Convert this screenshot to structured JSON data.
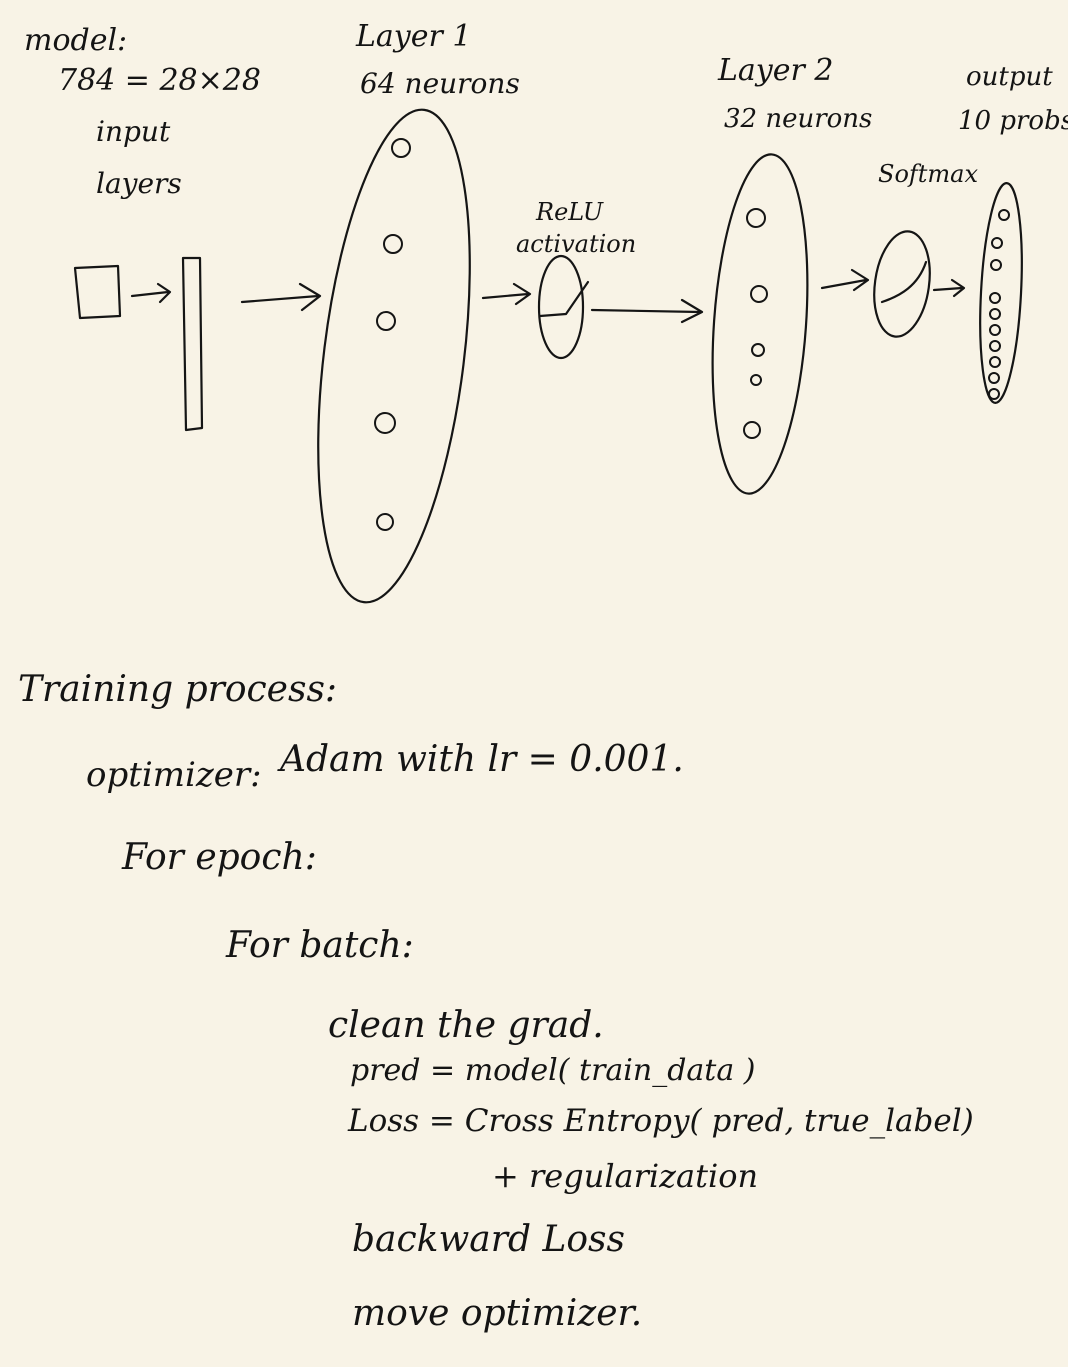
{
  "model": {
    "heading": "model:",
    "input_dim": "784 = 28×28",
    "input_label_1": "input",
    "input_label_2": "layers"
  },
  "layer1": {
    "title": "Layer 1",
    "neurons": "64 neurons"
  },
  "activation": {
    "label_1": "ReLU",
    "label_2": "activation"
  },
  "layer2": {
    "title": "Layer 2",
    "neurons": "32 neurons"
  },
  "softmax": {
    "label": "Softmax"
  },
  "output": {
    "title": "output",
    "probs": "10 probs"
  },
  "training": {
    "heading": "Training process:",
    "optimizer_label": "optimizer:",
    "optimizer_value": "Adam with lr = 0.001.",
    "for_epoch": "For epoch:",
    "for_batch": "For batch:",
    "step_clear": "clean the grad.",
    "step_pred": "pred = model( train_data )",
    "step_loss_1": "Loss  =   Cross  Entropy( pred,  true_label)",
    "step_loss_2": "+ regularization",
    "step_backward": "backward  Loss",
    "step_move": "move optimizer."
  }
}
